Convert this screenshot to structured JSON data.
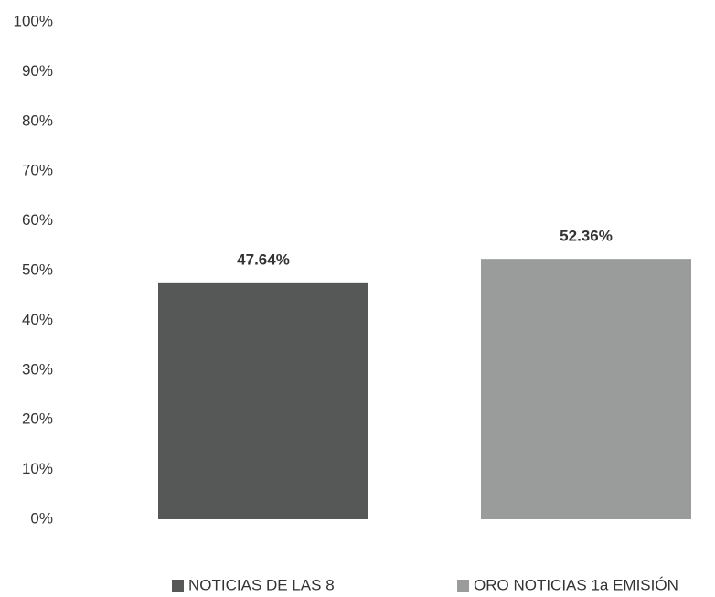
{
  "chart_data": {
    "type": "bar",
    "series": [
      {
        "name": "NOTICIAS DE LAS 8",
        "color": "#555857",
        "values": [
          47.64
        ],
        "value_labels": [
          "47.64%"
        ]
      },
      {
        "name": "ORO NOTICIAS 1a EMISIÓN",
        "color": "#9a9c9c",
        "values": [
          52.36
        ],
        "value_labels": [
          "52.36%"
        ]
      }
    ],
    "ylim": [
      0,
      100
    ],
    "yticks": [
      {
        "value": 0,
        "label": "0%"
      },
      {
        "value": 10,
        "label": "10%"
      },
      {
        "value": 20,
        "label": "20%"
      },
      {
        "value": 30,
        "label": "30%"
      },
      {
        "value": 40,
        "label": "40%"
      },
      {
        "value": 50,
        "label": "50%"
      },
      {
        "value": 60,
        "label": "60%"
      },
      {
        "value": 70,
        "label": "70%"
      },
      {
        "value": 80,
        "label": "80%"
      },
      {
        "value": 90,
        "label": "90%"
      },
      {
        "value": 100,
        "label": "100%"
      }
    ],
    "grid": false,
    "legend": "bottom"
  }
}
